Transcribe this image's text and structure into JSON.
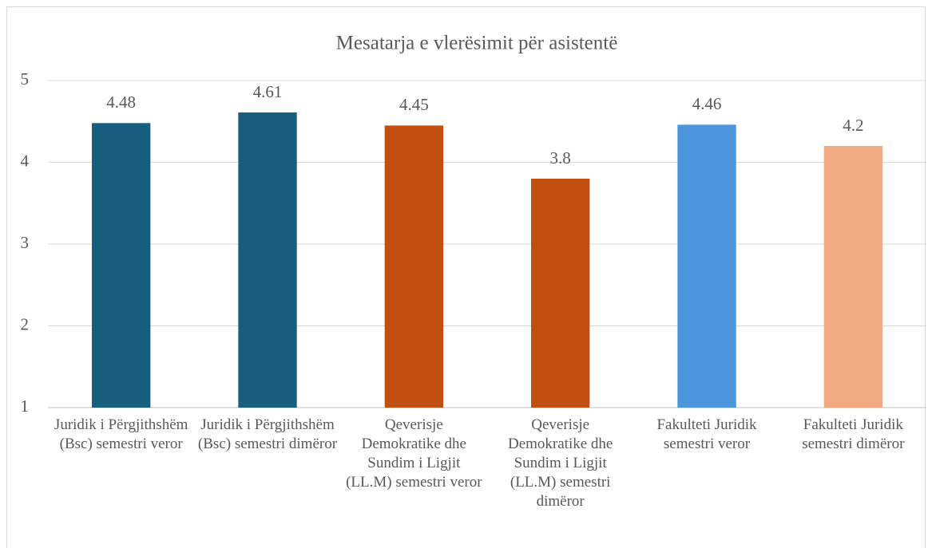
{
  "chart_data": {
    "type": "bar",
    "title": "Mesatarja e vlerësimit për asistentë",
    "categories": [
      "Juridik i Përgjithshëm (Bsc) semestri veror",
      "Juridik i Përgjithshëm (Bsc) semestri dimëror",
      "Qeverisje Demokratike dhe Sundim i Ligjit (LL.M) semestri veror",
      "Qeverisje Demokratike dhe Sundim i Ligjit (LL.M) semestri dimëror",
      "Fakulteti Juridik semestri veror",
      "Fakulteti Juridik semestri dimëror"
    ],
    "values": [
      4.48,
      4.61,
      4.45,
      3.8,
      4.46,
      4.2
    ],
    "colors": [
      "#165d7e",
      "#165d7e",
      "#c14f12",
      "#c14f12",
      "#4a95db",
      "#f1a982"
    ],
    "ylim": [
      1,
      5
    ],
    "yticks": [
      1,
      2,
      3,
      4,
      5
    ],
    "grid": true
  }
}
